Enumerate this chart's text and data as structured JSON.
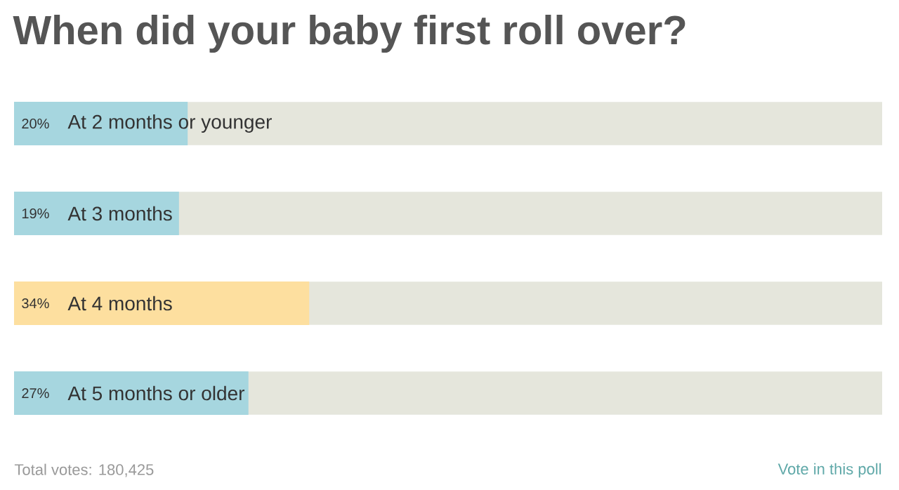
{
  "chart_data": {
    "type": "bar",
    "orientation": "horizontal",
    "title": "When did your baby first roll over?",
    "categories": [
      "At 2 months or younger",
      "At 3 months",
      "At 4 months",
      "At 5 months or older"
    ],
    "values": [
      20,
      19,
      34,
      27
    ],
    "value_labels": [
      "20%",
      "19%",
      "34%",
      "27%"
    ],
    "colors": [
      "#a6d6df",
      "#a6d6df",
      "#fddf9f",
      "#a6d6df"
    ],
    "xlim": [
      0,
      100
    ],
    "annotations": [
      "Total votes: 180,425",
      "Vote in this poll"
    ]
  }
}
